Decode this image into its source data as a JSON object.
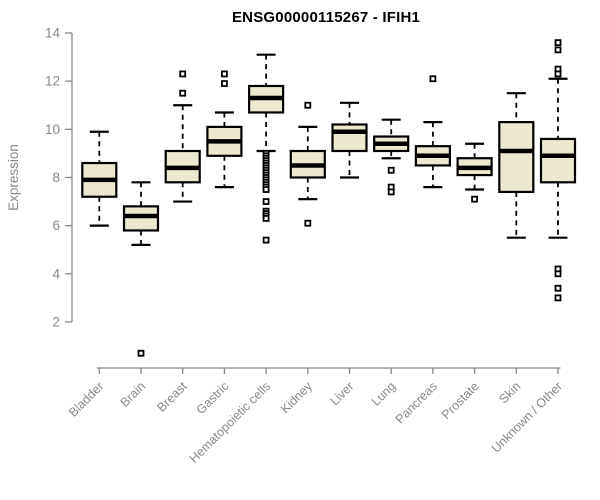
{
  "chart_data": {
    "type": "boxplot",
    "title": "ENSG00000115267 - IFIH1",
    "ylabel": "Expression",
    "xlabel": "",
    "yticks": [
      2,
      4,
      6,
      8,
      10,
      12,
      14
    ],
    "ylim": [
      2,
      14
    ],
    "grid": false,
    "legend": "none",
    "categories": [
      "Bladder",
      "Brain",
      "Breast",
      "Gastric",
      "Hematopoietic cells",
      "Kidney",
      "Liver",
      "Lung",
      "Pancreas",
      "Prostate",
      "Skin",
      "Unknown / Other"
    ],
    "series": [
      {
        "category": "Bladder",
        "whisker_low": 6.0,
        "q1": 7.2,
        "median": 7.9,
        "q3": 8.6,
        "whisker_high": 9.9,
        "outliers": []
      },
      {
        "category": "Brain",
        "whisker_low": 5.2,
        "q1": 5.8,
        "median": 6.4,
        "q3": 6.8,
        "whisker_high": 7.8,
        "outliers": [
          0.7
        ]
      },
      {
        "category": "Breast",
        "whisker_low": 7.0,
        "q1": 7.8,
        "median": 8.4,
        "q3": 9.1,
        "whisker_high": 11.0,
        "outliers": [
          12.3,
          11.5
        ]
      },
      {
        "category": "Gastric",
        "whisker_low": 7.6,
        "q1": 8.9,
        "median": 9.5,
        "q3": 10.1,
        "whisker_high": 10.7,
        "outliers": [
          12.3,
          11.9
        ]
      },
      {
        "category": "Hematopoietic cells",
        "whisker_low": 9.1,
        "q1": 10.7,
        "median": 11.3,
        "q3": 11.8,
        "whisker_high": 13.1,
        "outliers": [
          9.0,
          8.9,
          8.8,
          8.7,
          8.6,
          8.5,
          8.4,
          8.3,
          8.2,
          8.1,
          8.0,
          7.9,
          7.8,
          7.7,
          7.6,
          7.5,
          7.0,
          6.6,
          6.5,
          6.4,
          6.3,
          5.4
        ]
      },
      {
        "category": "Kidney",
        "whisker_low": 7.1,
        "q1": 8.0,
        "median": 8.5,
        "q3": 9.1,
        "whisker_high": 10.1,
        "outliers": [
          11.0,
          6.1
        ]
      },
      {
        "category": "Liver",
        "whisker_low": 8.0,
        "q1": 9.1,
        "median": 9.9,
        "q3": 10.2,
        "whisker_high": 11.1,
        "outliers": []
      },
      {
        "category": "Lung",
        "whisker_low": 8.8,
        "q1": 9.1,
        "median": 9.4,
        "q3": 9.7,
        "whisker_high": 10.4,
        "outliers": [
          8.3,
          7.6,
          7.4
        ]
      },
      {
        "category": "Pancreas",
        "whisker_low": 7.6,
        "q1": 8.5,
        "median": 8.9,
        "q3": 9.3,
        "whisker_high": 10.3,
        "outliers": [
          12.1
        ]
      },
      {
        "category": "Prostate",
        "whisker_low": 7.5,
        "q1": 8.1,
        "median": 8.4,
        "q3": 8.8,
        "whisker_high": 9.4,
        "outliers": [
          7.1
        ]
      },
      {
        "category": "Skin",
        "whisker_low": 5.5,
        "q1": 7.4,
        "median": 9.1,
        "q3": 10.3,
        "whisker_high": 11.5,
        "outliers": []
      },
      {
        "category": "Unknown / Other",
        "whisker_low": 5.5,
        "q1": 7.8,
        "median": 8.9,
        "q3": 9.6,
        "whisker_high": 12.1,
        "outliers": [
          13.6,
          13.3,
          12.5,
          12.3,
          4.2,
          4.0,
          3.4,
          3.0
        ]
      }
    ],
    "colors": {
      "box_fill": "#EDE8D0",
      "box_border": "#000000",
      "median": "#000000",
      "whisker": "#000000",
      "outlier_fill": "#FFFFFF",
      "outlier_border": "#000000",
      "axis": "#888888",
      "tick_label": "#888888",
      "axis_label": "#888888",
      "title": "#000000",
      "background": "#FFFFFF"
    }
  }
}
